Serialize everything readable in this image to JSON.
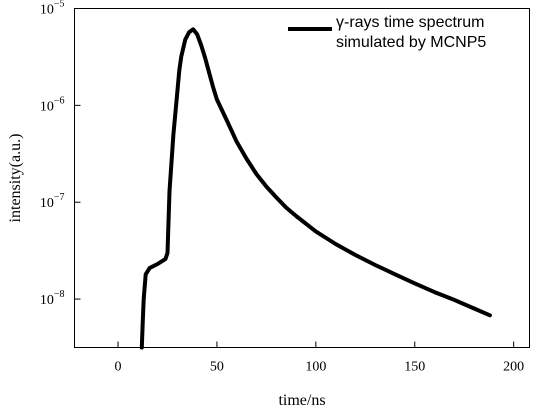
{
  "chart_data": {
    "type": "line",
    "title": "",
    "xlabel": "time/ns",
    "ylabel": "intensity(a.u.)",
    "xlim": [
      -22,
      208
    ],
    "ylim_log10": [
      -8.5,
      -5
    ],
    "y_scale": "log",
    "x_ticks": [
      0,
      50,
      100,
      150,
      200
    ],
    "x_tick_labels": [
      "0",
      "50",
      "100",
      "150",
      "200"
    ],
    "y_ticks": [
      {
        "base": "10",
        "exp": "−5",
        "value": 1e-05
      },
      {
        "base": "10",
        "exp": "−6",
        "value": 1e-06
      },
      {
        "base": "10",
        "exp": "−7",
        "value": 1e-07
      },
      {
        "base": "10",
        "exp": "−8",
        "value": 1e-08
      }
    ],
    "grid": false,
    "legend_position": "top-right",
    "legend": {
      "line1": "γ-rays time spectrum",
      "line2": "simulated by MCNP5"
    },
    "line_color": "#000000",
    "series": [
      {
        "name": "γ-rays time spectrum simulated by MCNP5",
        "x": [
          12,
          12.5,
          13,
          14,
          16,
          20,
          24,
          25,
          26,
          28,
          30,
          31,
          32,
          34,
          36,
          38,
          40,
          42,
          44,
          46,
          48,
          50,
          55,
          60,
          65,
          70,
          75,
          80,
          85,
          90,
          100,
          110,
          120,
          130,
          140,
          150,
          160,
          170,
          180,
          188
        ],
        "y": [
          3e-09,
          6e-09,
          1e-08,
          1.8e-08,
          2.1e-08,
          2.3e-08,
          2.6e-08,
          3e-08,
          1.3e-07,
          5e-07,
          1.4e-06,
          2.3e-06,
          3.2e-06,
          4.8e-06,
          5.7e-06,
          6.1e-06,
          5.4e-06,
          4.2e-06,
          3.1e-06,
          2.2e-06,
          1.55e-06,
          1.15e-06,
          7e-07,
          4.2e-07,
          2.8e-07,
          1.95e-07,
          1.45e-07,
          1.12e-07,
          8.8e-08,
          7.2e-08,
          5e-08,
          3.7e-08,
          2.85e-08,
          2.25e-08,
          1.8e-08,
          1.45e-08,
          1.18e-08,
          9.8e-09,
          8e-09,
          6.8e-09
        ]
      }
    ]
  }
}
